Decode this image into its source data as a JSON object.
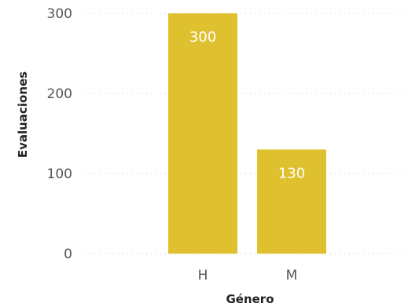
{
  "chart_data": {
    "type": "bar",
    "categories": [
      "H",
      "M"
    ],
    "values": [
      300,
      130
    ],
    "data_labels": [
      "300",
      "130"
    ],
    "xlabel": "Género",
    "ylabel": "Evaluaciones",
    "ylim": [
      0,
      300
    ],
    "yticks": [
      0,
      100,
      200,
      300
    ],
    "ytick_labels": [
      "0",
      "100",
      "200",
      "300"
    ],
    "grid": true,
    "legend": "none",
    "bar_color": "#dfc130",
    "label_color": "#ffffff"
  }
}
